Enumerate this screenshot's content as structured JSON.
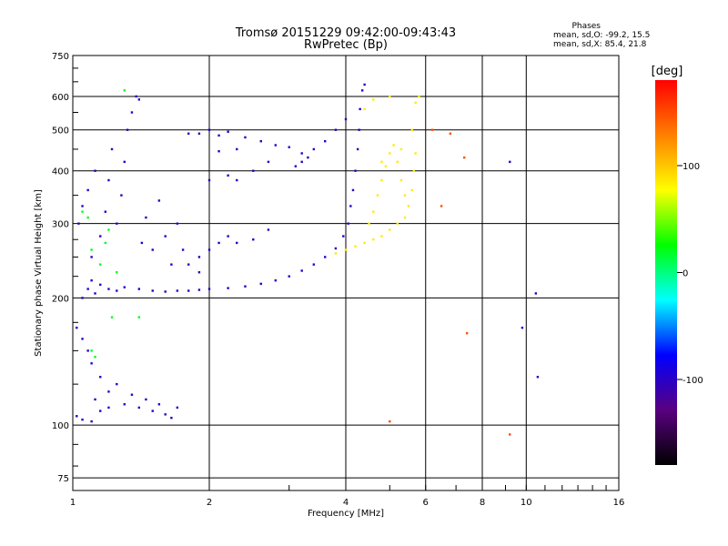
{
  "chart_data": {
    "type": "scatter",
    "title": "Tromsø 20151229 09:42:00-09:43:43",
    "subtitle": "RwPretec (Bp)",
    "xlabel": "Frequency [MHz]",
    "ylabel": "Stationary phase Virtual Height [km]",
    "x_scale": "log",
    "y_scale": "log",
    "xlim": [
      1,
      16
    ],
    "ylim": [
      70,
      750
    ],
    "x_ticks": [
      1,
      2,
      4,
      6,
      8,
      10,
      16
    ],
    "y_ticks": [
      75,
      100,
      200,
      300,
      400,
      500,
      600,
      750
    ],
    "grid": true,
    "phase_stats": {
      "title": "Phases",
      "o_line": "mean, sd,O:  -99.2, 15.5",
      "x_line": "mean, sd,X:  85.4, 21.8"
    },
    "colorbar": {
      "label": "[deg]",
      "range": [
        -180,
        180
      ],
      "ticks": [
        100,
        0,
        -100
      ],
      "colors": [
        "#000000",
        "#5a0080",
        "#0000ff",
        "#00ffff",
        "#00ff00",
        "#ffff00",
        "#ff8000",
        "#ff0000"
      ]
    },
    "series": [
      {
        "mode": "O",
        "phase_deg": -100,
        "points": [
          [
            1.05,
            200
          ],
          [
            1.08,
            210
          ],
          [
            1.1,
            220
          ],
          [
            1.12,
            205
          ],
          [
            1.15,
            215
          ],
          [
            1.2,
            210
          ],
          [
            1.25,
            208
          ],
          [
            1.3,
            212
          ],
          [
            1.4,
            210
          ],
          [
            1.5,
            208
          ],
          [
            1.6,
            207
          ],
          [
            1.7,
            208
          ],
          [
            1.8,
            208
          ],
          [
            1.9,
            209
          ],
          [
            2.0,
            210
          ],
          [
            2.2,
            211
          ],
          [
            2.4,
            213
          ],
          [
            2.6,
            216
          ],
          [
            2.8,
            220
          ],
          [
            3.0,
            225
          ],
          [
            3.2,
            232
          ],
          [
            3.4,
            240
          ],
          [
            3.6,
            250
          ],
          [
            3.8,
            262
          ],
          [
            3.95,
            280
          ],
          [
            4.05,
            300
          ],
          [
            4.1,
            330
          ],
          [
            4.15,
            360
          ],
          [
            4.2,
            400
          ],
          [
            4.25,
            450
          ],
          [
            4.28,
            500
          ],
          [
            4.3,
            560
          ],
          [
            4.35,
            620
          ],
          [
            4.4,
            640
          ],
          [
            1.03,
            300
          ],
          [
            1.05,
            330
          ],
          [
            1.08,
            360
          ],
          [
            1.1,
            250
          ],
          [
            1.12,
            400
          ],
          [
            1.15,
            280
          ],
          [
            1.18,
            320
          ],
          [
            1.2,
            380
          ],
          [
            1.22,
            450
          ],
          [
            1.25,
            300
          ],
          [
            1.28,
            350
          ],
          [
            1.3,
            420
          ],
          [
            1.32,
            500
          ],
          [
            1.35,
            550
          ],
          [
            1.38,
            600
          ],
          [
            1.4,
            590
          ],
          [
            1.42,
            270
          ],
          [
            1.45,
            310
          ],
          [
            1.5,
            260
          ],
          [
            1.55,
            340
          ],
          [
            1.6,
            280
          ],
          [
            1.65,
            240
          ],
          [
            1.7,
            300
          ],
          [
            1.75,
            260
          ],
          [
            1.8,
            240
          ],
          [
            1.9,
            250
          ],
          [
            2.0,
            260
          ],
          [
            2.1,
            270
          ],
          [
            2.2,
            280
          ],
          [
            2.3,
            270
          ],
          [
            2.5,
            275
          ],
          [
            2.7,
            290
          ],
          [
            2.3,
            380
          ],
          [
            2.5,
            400
          ],
          [
            2.7,
            420
          ],
          [
            2.0,
            380
          ],
          [
            2.2,
            390
          ],
          [
            1.9,
            230
          ],
          [
            1.8,
            490
          ],
          [
            1.9,
            490
          ],
          [
            2.0,
            500
          ],
          [
            2.1,
            485
          ],
          [
            2.2,
            495
          ],
          [
            2.4,
            480
          ],
          [
            2.6,
            470
          ],
          [
            2.8,
            460
          ],
          [
            3.0,
            455
          ],
          [
            3.2,
            440
          ],
          [
            3.4,
            450
          ],
          [
            3.6,
            470
          ],
          [
            3.8,
            500
          ],
          [
            4.0,
            530
          ],
          [
            2.1,
            445
          ],
          [
            2.3,
            450
          ],
          [
            3.2,
            420
          ],
          [
            3.3,
            430
          ],
          [
            3.1,
            410
          ],
          [
            1.02,
            170
          ],
          [
            1.05,
            160
          ],
          [
            1.08,
            150
          ],
          [
            1.1,
            140
          ],
          [
            1.15,
            130
          ],
          [
            1.2,
            120
          ],
          [
            1.02,
            105
          ],
          [
            1.05,
            103
          ],
          [
            1.1,
            102
          ],
          [
            1.15,
            108
          ],
          [
            1.2,
            110
          ],
          [
            1.3,
            112
          ],
          [
            1.4,
            110
          ],
          [
            1.5,
            108
          ],
          [
            1.6,
            106
          ],
          [
            1.7,
            110
          ],
          [
            1.12,
            115
          ],
          [
            1.25,
            125
          ],
          [
            1.35,
            118
          ],
          [
            1.45,
            115
          ],
          [
            1.55,
            112
          ],
          [
            1.65,
            104
          ],
          [
            9.8,
            170
          ],
          [
            10.5,
            205
          ],
          [
            9.2,
            420
          ],
          [
            10.6,
            130
          ]
        ]
      },
      {
        "mode": "X",
        "phase_deg": 85,
        "points": [
          [
            3.8,
            255
          ],
          [
            4.0,
            260
          ],
          [
            4.2,
            265
          ],
          [
            4.4,
            270
          ],
          [
            4.6,
            275
          ],
          [
            4.8,
            280
          ],
          [
            5.0,
            290
          ],
          [
            5.2,
            300
          ],
          [
            5.4,
            310
          ],
          [
            5.5,
            330
          ],
          [
            5.6,
            360
          ],
          [
            5.65,
            400
          ],
          [
            5.7,
            440
          ],
          [
            5.6,
            500
          ],
          [
            5.7,
            580
          ],
          [
            5.8,
            600
          ],
          [
            4.5,
            300
          ],
          [
            4.6,
            320
          ],
          [
            4.7,
            350
          ],
          [
            4.8,
            380
          ],
          [
            4.9,
            410
          ],
          [
            5.0,
            440
          ],
          [
            5.1,
            460
          ],
          [
            5.2,
            420
          ],
          [
            5.3,
            380
          ],
          [
            5.4,
            350
          ],
          [
            4.4,
            560
          ],
          [
            4.6,
            590
          ],
          [
            5.0,
            600
          ],
          [
            4.8,
            420
          ],
          [
            5.3,
            450
          ]
        ]
      },
      {
        "mode": "other",
        "phase_deg": 20,
        "points": [
          [
            1.1,
            260
          ],
          [
            1.15,
            240
          ],
          [
            1.2,
            290
          ],
          [
            1.25,
            230
          ],
          [
            1.1,
            150
          ],
          [
            1.12,
            145
          ],
          [
            1.08,
            310
          ],
          [
            1.3,
            620
          ],
          [
            1.05,
            320
          ],
          [
            1.18,
            270
          ],
          [
            1.22,
            180
          ],
          [
            1.4,
            180
          ]
        ]
      },
      {
        "mode": "other",
        "phase_deg": 150,
        "points": [
          [
            6.2,
            500
          ],
          [
            6.8,
            490
          ],
          [
            7.3,
            430
          ],
          [
            7.4,
            165
          ],
          [
            6.5,
            330
          ],
          [
            5.0,
            102
          ],
          [
            9.2,
            95
          ]
        ]
      }
    ]
  }
}
